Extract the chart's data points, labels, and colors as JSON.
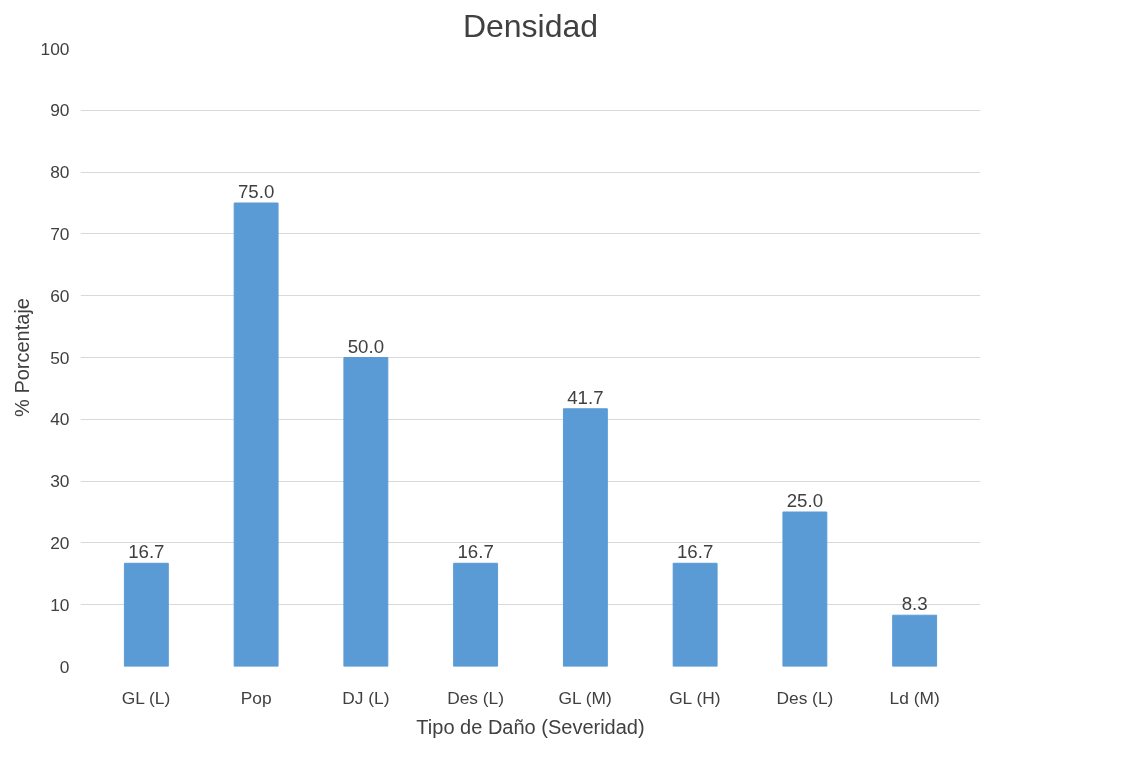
{
  "chart_data": {
    "type": "bar",
    "title": "Densidad",
    "xlabel": "Tipo de Daño (Severidad)",
    "ylabel": "% Porcentaje",
    "categories": [
      "GL (L)",
      "Pop",
      "DJ (L)",
      "Des (L)",
      "GL (M)",
      "GL (H)",
      "Des (L)",
      "Ld (M)"
    ],
    "values": [
      16.7,
      75.0,
      50.0,
      16.7,
      41.7,
      16.7,
      25.0,
      8.3
    ],
    "value_labels": [
      "16.7",
      "75.0",
      "50.0",
      "16.7",
      "41.7",
      "16.7",
      "25.0",
      "8.3"
    ],
    "color": "#5b9bd5",
    "ylim": [
      0,
      100
    ],
    "yticks": [
      0,
      10,
      20,
      30,
      40,
      50,
      60,
      70,
      80,
      90,
      100
    ],
    "grid": "y"
  }
}
